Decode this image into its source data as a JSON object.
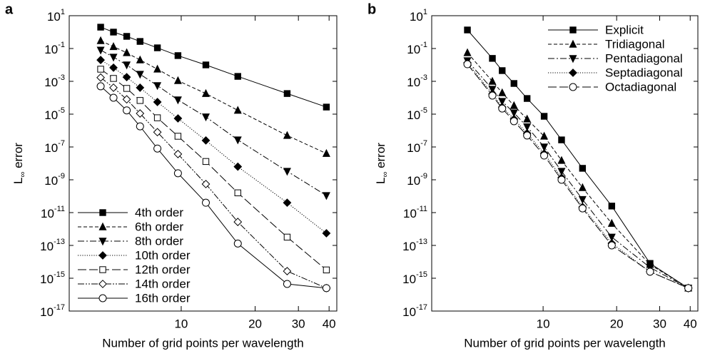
{
  "chart_data": [
    {
      "type": "line",
      "panel_label": "a",
      "x_label": "Number of grid points per wavelength",
      "y_label": "L∞ error",
      "x_scale": "log",
      "y_scale": "log",
      "legend": "lower left",
      "xlim": [
        3.5,
        43
      ],
      "ylim": [
        1e-17,
        10
      ],
      "xticks": [
        10,
        20,
        30,
        40
      ],
      "yticks": [
        {
          "value": 10,
          "label": "10^1"
        },
        {
          "value": 0.1,
          "label": "10^-1"
        },
        {
          "value": 0.001,
          "label": "10^-3"
        },
        {
          "value": 1e-05,
          "label": "10^-5"
        },
        {
          "value": 1e-07,
          "label": "10^-7"
        },
        {
          "value": 1e-09,
          "label": "10^-9"
        },
        {
          "value": 1e-11,
          "label": "10^-11"
        },
        {
          "value": 1e-13,
          "label": "10^-13"
        },
        {
          "value": 1e-15,
          "label": "10^-15"
        },
        {
          "value": 1e-17,
          "label": "10^-17"
        }
      ],
      "x": [
        4.7,
        5.3,
        6,
        6.8,
        8,
        9.7,
        12.6,
        17,
        27,
        39
      ],
      "series": [
        {
          "name": "4th order",
          "color": "#000000",
          "marker": "square",
          "dash": "solid",
          "values": [
            2,
            1,
            0.55,
            0.27,
            0.11,
            0.037,
            0.01,
            0.002,
            0.00018,
            2.7e-05
          ]
        },
        {
          "name": "6th order",
          "color": "#000000",
          "marker": "triangle-up",
          "dash": "dashed",
          "values": [
            0.3,
            0.13,
            0.055,
            0.02,
            0.0055,
            0.0011,
            0.00018,
            1.7e-05,
            5e-07,
            4e-08
          ]
        },
        {
          "name": "8th order",
          "color": "#000000",
          "marker": "triangle-down",
          "dash": "dashdot",
          "values": [
            0.08,
            0.03,
            0.01,
            0.0027,
            0.00055,
            7.4e-05,
            6.8e-06,
            2.7e-07,
            3.3e-09,
            1.1e-10
          ]
        },
        {
          "name": "10th order",
          "color": "#000000",
          "marker": "diamond",
          "dash": "dotted",
          "values": [
            0.02,
            0.0068,
            0.0018,
            0.00041,
            5.5e-05,
            5.5e-06,
            2.5e-07,
            6.3e-09,
            4e-11,
            5.5e-13
          ]
        },
        {
          "name": "12th order",
          "color": "#000000",
          "marker": "square-open",
          "dash": "longdash",
          "values": [
            0.0055,
            0.0015,
            0.00037,
            6.8e-05,
            6e-06,
            4.5e-07,
            1.3e-08,
            1.6e-10,
            3.2e-13,
            3.2e-15
          ]
        },
        {
          "name": "14th order",
          "color": "#000000",
          "marker": "diamond-open",
          "dash": "dashdotdot",
          "values": [
            0.0017,
            0.00041,
            8e-05,
            1.1e-05,
            8e-07,
            3.7e-08,
            5.5e-10,
            2.7e-12,
            2.7e-15,
            2.5e-16
          ]
        },
        {
          "name": "16th order",
          "color": "#000000",
          "marker": "circle-open",
          "dash": "solid",
          "values": [
            0.0005,
            0.0001,
            1.7e-05,
            1.8e-06,
            8e-08,
            2.5e-09,
            4e-11,
            1.3e-13,
            4.5e-16,
            2.5e-16
          ]
        }
      ]
    },
    {
      "type": "line",
      "panel_label": "b",
      "x_label": "Number of grid points per wavelength",
      "y_label": "L∞ error",
      "x_scale": "log",
      "y_scale": "log",
      "legend": "upper right",
      "xlim": [
        3.5,
        43
      ],
      "ylim": [
        1e-17,
        10
      ],
      "xticks": [
        10,
        20,
        30,
        40
      ],
      "yticks": [
        {
          "value": 10,
          "label": "10^1"
        },
        {
          "value": 0.1,
          "label": "10^-1"
        },
        {
          "value": 0.001,
          "label": "10^-3"
        },
        {
          "value": 1e-05,
          "label": "10^-5"
        },
        {
          "value": 1e-07,
          "label": "10^-7"
        },
        {
          "value": 1e-09,
          "label": "10^-9"
        },
        {
          "value": 1e-11,
          "label": "10^-11"
        },
        {
          "value": 1e-13,
          "label": "10^-13"
        },
        {
          "value": 1e-15,
          "label": "10^-15"
        },
        {
          "value": 1e-17,
          "label": "10^-17"
        }
      ],
      "x": [
        4.9,
        6.2,
        6.8,
        7.6,
        8.6,
        10.1,
        11.9,
        14.5,
        19.1,
        27.4,
        39.3
      ],
      "series": [
        {
          "name": "Explicit",
          "color": "#000000",
          "marker": "square",
          "dash": "solid",
          "values": [
            1.35,
            0.025,
            0.0045,
            0.00074,
            9e-05,
            7.4e-06,
            2.7e-07,
            5e-09,
            2.5e-11,
            8e-15,
            2.5e-16
          ]
        },
        {
          "name": "Tridiagonal",
          "color": "#000000",
          "marker": "triangle-up",
          "dash": "dashed",
          "values": [
            0.055,
            0.001,
            0.0002,
            3.3e-05,
            5e-06,
            4.5e-07,
            1.5e-08,
            3.3e-10,
            2.2e-12,
            6.8e-15,
            2.5e-16
          ]
        },
        {
          "name": "Pentadiagonal",
          "color": "#000000",
          "marker": "triangle-down",
          "dash": "dashdot",
          "values": [
            0.018,
            0.00033,
            6e-05,
            1.2e-05,
            1.7e-06,
            1e-07,
            3.3e-09,
            6.3e-11,
            3.2e-13,
            4.5e-15,
            2.5e-16
          ]
        },
        {
          "name": "Septadiagonal",
          "color": "#000000",
          "marker": "diamond",
          "dash": "dotted",
          "values": [
            0.0135,
            0.00017,
            2.7e-05,
            5e-06,
            6.8e-07,
            4e-08,
            1.35e-09,
            2.2e-11,
            1.35e-13,
            2.5e-15,
            2.5e-16
          ]
        },
        {
          "name": "Octadiagonal",
          "color": "#000000",
          "marker": "circle-open",
          "dash": "longdash",
          "values": [
            0.011,
            0.000135,
            2.2e-05,
            3.7e-06,
            5e-07,
            3e-08,
            1e-09,
            1.8e-11,
            1e-13,
            2.5e-15,
            2.5e-16
          ]
        }
      ]
    }
  ]
}
